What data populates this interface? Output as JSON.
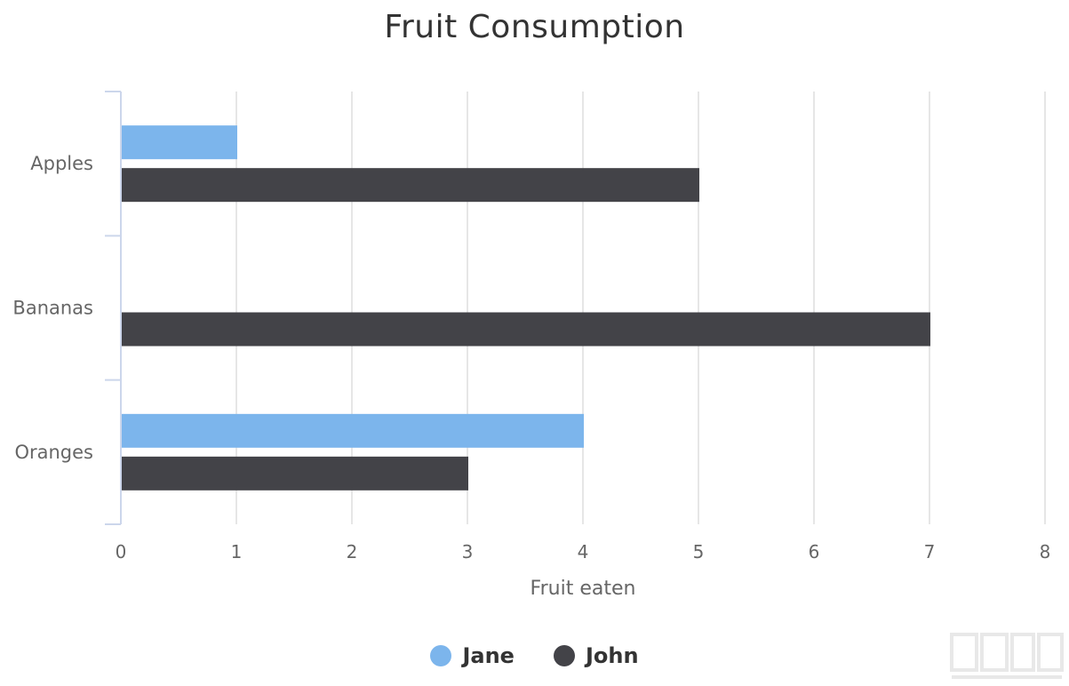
{
  "chart_data": {
    "type": "bar",
    "orientation": "horizontal",
    "title": "Fruit Consumption",
    "xlabel": "Fruit eaten",
    "ylabel": "",
    "categories": [
      "Apples",
      "Bananas",
      "Oranges"
    ],
    "series": [
      {
        "name": "Jane",
        "color": "#7cb5ec",
        "values": [
          1,
          0,
          4
        ]
      },
      {
        "name": "John",
        "color": "#434348",
        "values": [
          5,
          7,
          3
        ]
      }
    ],
    "xlim": [
      0,
      8
    ],
    "ticks": [
      "0",
      "1",
      "2",
      "3",
      "4",
      "5",
      "6",
      "7",
      "8"
    ],
    "grid": true,
    "legend_position": "bottom"
  },
  "colors": {
    "grid": "#e6e6e6",
    "axis": "#ccd6eb",
    "tick_text": "#666666",
    "title": "#333333"
  },
  "watermark": {
    "icon": "xiazaiba-logo-icon"
  }
}
